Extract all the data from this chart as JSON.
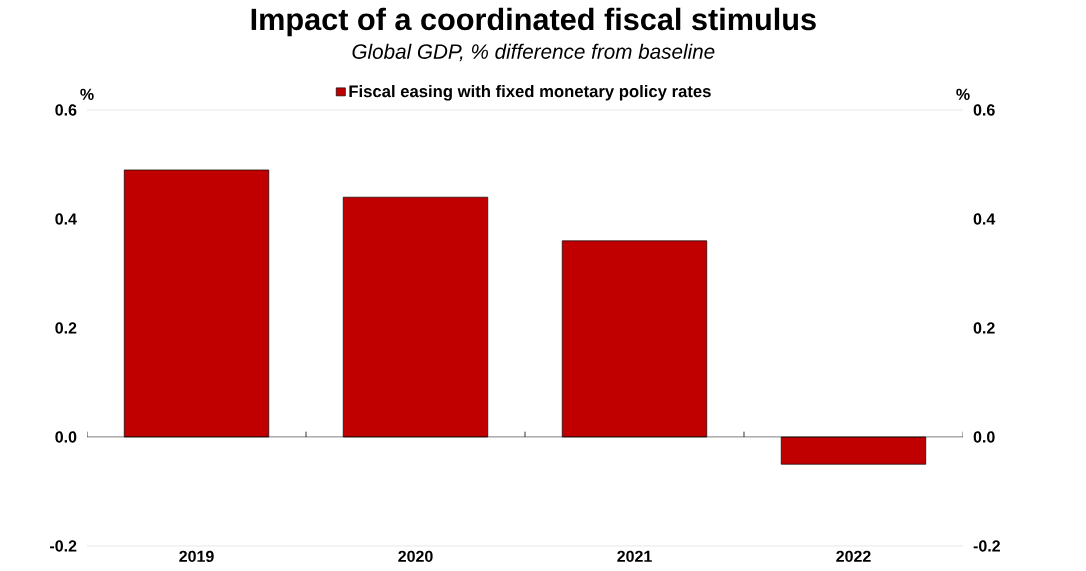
{
  "chart_data": {
    "type": "bar",
    "title": "Impact of a coordinated fiscal stimulus",
    "subtitle": "Global GDP, % difference from baseline",
    "ylabel": "%",
    "y2label": "%",
    "categories": [
      "2019",
      "2020",
      "2021",
      "2022"
    ],
    "series": [
      {
        "name": "Fiscal easing with fixed monetary policy rates",
        "color": "#c00000",
        "values": [
          0.49,
          0.44,
          0.36,
          -0.05
        ]
      }
    ],
    "ylim": [
      -0.2,
      0.6
    ],
    "yticks": [
      -0.2,
      {
        "value": 0,
        "label": "0.0"
      },
      0.2,
      0.4,
      0.6
    ],
    "y2lim": [
      -0.2,
      0.6
    ],
    "y2ticks": [
      -0.2,
      {
        "value": 0,
        "label": "0.0"
      },
      0.2,
      0.4,
      0.6
    ],
    "legend": "top"
  }
}
